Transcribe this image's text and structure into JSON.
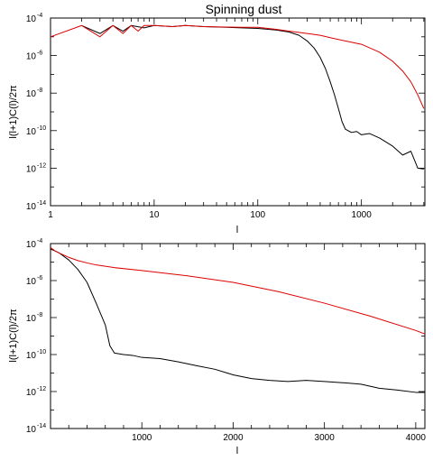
{
  "title": "Spinning dust",
  "chart_data": [
    {
      "type": "line",
      "x_scale": "log",
      "y_scale": "log",
      "xlim": [
        1,
        4096
      ],
      "ylim": [
        1e-14,
        0.0001
      ],
      "xlabel": "l",
      "ylabel": "l(l+1)C(l)/2π",
      "x_ticks": [
        {
          "v": 1,
          "label": "1"
        },
        {
          "v": 10,
          "label": "10"
        },
        {
          "v": 100,
          "label": "100"
        },
        {
          "v": 1000,
          "label": "1000"
        }
      ],
      "y_ticks": [
        {
          "v": 1e-14,
          "exp": "-14"
        },
        {
          "v": 1e-12,
          "exp": "-12"
        },
        {
          "v": 1e-10,
          "exp": "-10"
        },
        {
          "v": 1e-08,
          "exp": "-8"
        },
        {
          "v": 1e-06,
          "exp": "-6"
        },
        {
          "v": 0.0001,
          "exp": "-4"
        }
      ],
      "series": [
        {
          "color": "#000000",
          "x": [
            2,
            3,
            4,
            5,
            6,
            8,
            10,
            15,
            20,
            30,
            50,
            70,
            100,
            150,
            200,
            250,
            300,
            350,
            400,
            450,
            500,
            550,
            600,
            650,
            700,
            800,
            900,
            1000,
            1200,
            1500,
            2000,
            2500,
            3000,
            3500,
            4000
          ],
          "y": [
            4e-05,
            1.5e-05,
            4e-05,
            2e-05,
            4e-05,
            3e-05,
            4e-05,
            3.5e-05,
            4e-05,
            3.5e-05,
            3.2e-05,
            3e-05,
            2.8e-05,
            2.3e-05,
            1.8e-05,
            1.2e-05,
            6e-06,
            2.5e-06,
            8e-07,
            2e-07,
            4e-08,
            8e-09,
            1.5e-09,
            3e-10,
            1.2e-10,
            8e-11,
            9e-11,
            6e-11,
            7e-11,
            4e-11,
            1.5e-11,
            5e-12,
            8e-12,
            1e-12,
            9e-13
          ]
        },
        {
          "color": "#dd0000",
          "x": [
            1,
            2,
            3,
            4,
            5,
            6,
            7,
            8,
            10,
            15,
            20,
            30,
            50,
            70,
            100,
            150,
            200,
            300,
            400,
            500,
            700,
            1000,
            1500,
            2000,
            2500,
            3000,
            3500,
            4000
          ],
          "y": [
            1e-05,
            4e-05,
            1e-05,
            4e-05,
            1.5e-05,
            4e-05,
            2e-05,
            4e-05,
            4e-05,
            3.5e-05,
            4e-05,
            3.5e-05,
            3.3e-05,
            3.2e-05,
            3.2e-05,
            2.5e-05,
            2e-05,
            1.5e-05,
            1.2e-05,
            9e-06,
            6e-06,
            4e-06,
            1.5e-06,
            5e-07,
            1.5e-07,
            4e-08,
            8e-09,
            1.5e-09
          ]
        }
      ]
    },
    {
      "type": "line",
      "x_scale": "linear",
      "y_scale": "log",
      "xlim": [
        0,
        4100
      ],
      "ylim": [
        1e-14,
        0.0001
      ],
      "xlabel": "l",
      "ylabel": "l(l+1)C(l)/2π",
      "x_ticks": [
        {
          "v": 1000,
          "label": "1000"
        },
        {
          "v": 2000,
          "label": "2000"
        },
        {
          "v": 3000,
          "label": "3000"
        },
        {
          "v": 4000,
          "label": "4000"
        }
      ],
      "y_ticks": [
        {
          "v": 1e-14,
          "exp": "-14"
        },
        {
          "v": 1e-12,
          "exp": "-12"
        },
        {
          "v": 1e-10,
          "exp": "-10"
        },
        {
          "v": 1e-08,
          "exp": "-8"
        },
        {
          "v": 1e-06,
          "exp": "-6"
        },
        {
          "v": 0.0001,
          "exp": "-4"
        }
      ],
      "series": [
        {
          "color": "#000000",
          "x": [
            2,
            50,
            100,
            200,
            300,
            400,
            500,
            600,
            650,
            700,
            800,
            900,
            1000,
            1200,
            1400,
            1600,
            1800,
            2000,
            2200,
            2400,
            2600,
            2800,
            3000,
            3200,
            3400,
            3600,
            3800,
            4000,
            4100
          ],
          "y": [
            5e-05,
            4e-05,
            3e-05,
            1.3e-05,
            4e-06,
            8e-07,
            6e-08,
            4e-09,
            3e-10,
            1.2e-10,
            1e-10,
            9e-11,
            7e-11,
            6e-11,
            4e-11,
            2.5e-11,
            1.6e-11,
            8e-12,
            5e-12,
            4e-12,
            3.5e-12,
            4e-12,
            3.5e-12,
            3e-12,
            2.5e-12,
            1.5e-12,
            1.2e-12,
            9e-13,
            9e-13
          ]
        },
        {
          "color": "#dd0000",
          "x": [
            2,
            50,
            100,
            200,
            300,
            400,
            500,
            700,
            1000,
            1500,
            2000,
            2500,
            3000,
            3500,
            4000,
            4100
          ],
          "y": [
            6e-05,
            4e-05,
            3e-05,
            1.8e-05,
            1.2e-05,
            9e-06,
            7e-06,
            5e-06,
            3.5e-06,
            1.8e-06,
            8e-07,
            2.5e-07,
            6e-08,
            1.2e-08,
            2e-09,
            1.3e-09
          ]
        }
      ]
    }
  ]
}
